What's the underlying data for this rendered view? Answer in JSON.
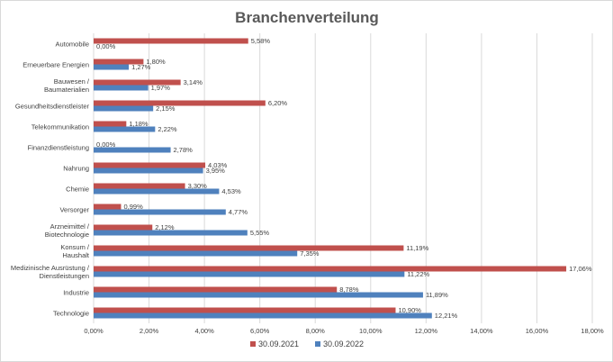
{
  "chart_data": {
    "type": "bar",
    "orientation": "horizontal",
    "title": "Branchenverteilung",
    "categories": [
      [
        "Automobile"
      ],
      [
        "Erneuerbare Energien"
      ],
      [
        "Bauwesen /",
        "Baumaterialien"
      ],
      [
        "Gesundheitsdienstleister"
      ],
      [
        "Telekommunikation"
      ],
      [
        "Finanzdienstleistung"
      ],
      [
        "Nahrung"
      ],
      [
        "Chemie"
      ],
      [
        "Versorger"
      ],
      [
        "Arzneimittel /",
        "Biotechnologie"
      ],
      [
        "Konsum /",
        "Haushalt"
      ],
      [
        "Medizinische Ausrüstung /",
        "Dienstleistungen"
      ],
      [
        "Industrie"
      ],
      [
        "Technologie"
      ]
    ],
    "series": [
      {
        "name": "30.09.2021",
        "color": "#c0504d",
        "values": [
          5.58,
          1.8,
          3.14,
          6.2,
          1.18,
          0.0,
          4.03,
          3.3,
          0.99,
          2.12,
          11.19,
          17.06,
          8.78,
          10.9
        ],
        "labels": [
          "5,58%",
          "1,80%",
          "3,14%",
          "6,20%",
          "1,18%",
          "0,00%",
          "4,03%",
          "3,30%",
          "0,99%",
          "2,12%",
          "11,19%",
          "17,06%",
          "8,78%",
          "10,90%"
        ]
      },
      {
        "name": "30.09.2022",
        "color": "#4f81bd",
        "values": [
          0.0,
          1.27,
          1.97,
          2.15,
          2.22,
          2.78,
          3.95,
          4.53,
          4.77,
          5.55,
          7.35,
          11.22,
          11.89,
          12.21
        ],
        "labels": [
          "0,00%",
          "1,27%",
          "1,97%",
          "2,15%",
          "2,22%",
          "2,78%",
          "3,95%",
          "4,53%",
          "4,77%",
          "5,55%",
          "7,35%",
          "11,22%",
          "11,89%",
          "12,21%"
        ]
      }
    ],
    "xlim": [
      0,
      18
    ],
    "xticks": [
      0,
      2,
      4,
      6,
      8,
      10,
      12,
      14,
      16,
      18
    ],
    "xtick_labels": [
      "0,00%",
      "2,00%",
      "4,00%",
      "6,00%",
      "8,00%",
      "10,00%",
      "12,00%",
      "14,00%",
      "16,00%",
      "18,00%"
    ],
    "grid": true,
    "legend": "bottom"
  }
}
